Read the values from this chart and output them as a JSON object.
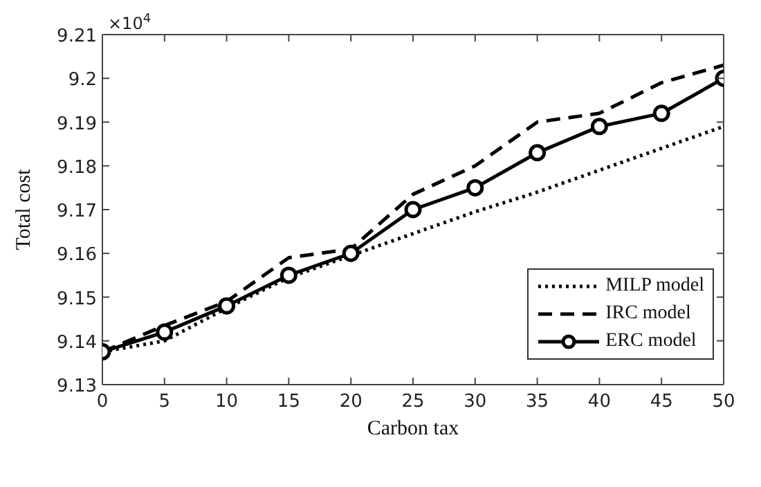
{
  "chart_data": {
    "type": "line",
    "xlabel": "Carbon tax",
    "ylabel": "Total cost",
    "annotations": [
      "×10$^{4}$"
    ],
    "x": [
      0,
      5,
      10,
      15,
      20,
      25,
      30,
      35,
      40,
      45,
      50
    ],
    "series": [
      {
        "name": "MILP model",
        "color": "#000000",
        "line_style": "dotted",
        "marker": "none",
        "values": [
          9.1375,
          9.14,
          9.1475,
          9.1545,
          9.1595,
          9.1645,
          9.1695,
          9.174,
          9.179,
          9.184,
          9.189
        ]
      },
      {
        "name": "IRC model",
        "color": "#000000",
        "line_style": "dashed",
        "marker": "none",
        "values": [
          9.1375,
          9.1435,
          9.149,
          9.159,
          9.161,
          9.1735,
          9.18,
          9.19,
          9.192,
          9.199,
          9.203
        ]
      },
      {
        "name": "ERC model",
        "color": "#000000",
        "line_style": "solid",
        "marker": "circle",
        "values": [
          9.1375,
          9.142,
          9.148,
          9.155,
          9.16,
          9.17,
          9.175,
          9.183,
          9.189,
          9.192,
          9.2
        ]
      }
    ],
    "xlim": [
      0,
      50
    ],
    "xticks": [
      0,
      5,
      10,
      15,
      20,
      25,
      30,
      35,
      40,
      45,
      50
    ],
    "ylim": [
      9.13,
      9.21
    ],
    "yticks": [
      9.13,
      9.14,
      9.15,
      9.16,
      9.17,
      9.18,
      9.19,
      9.2,
      9.21
    ],
    "grid": false,
    "legend": "bottom right"
  }
}
